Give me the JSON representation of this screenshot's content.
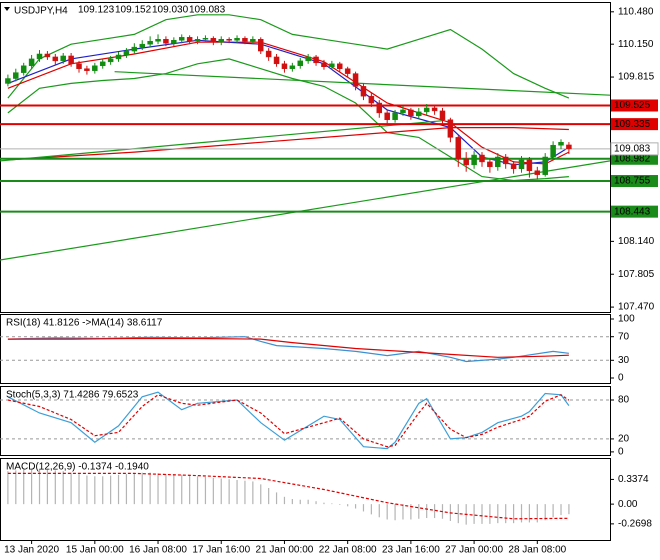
{
  "chart_data": [
    {
      "type": "candlestick",
      "title": "USDJPY,H4",
      "header_values": [
        "109.123",
        "109.152",
        "109.030",
        "109.083"
      ],
      "categories": [
        null,
        null,
        null,
        "13 Jan 2020",
        null,
        null,
        null,
        null,
        null,
        null,
        null,
        "15 Jan 00:00",
        null,
        null,
        null,
        null,
        null,
        null,
        null,
        "16 Jan 08:00",
        null,
        null,
        null,
        null,
        null,
        null,
        null,
        "17 Jan 16:00",
        null,
        null,
        null,
        null,
        null,
        null,
        null,
        "21 Jan 00:00",
        null,
        null,
        null,
        null,
        null,
        null,
        null,
        "22 Jan 08:00",
        null,
        null,
        null,
        null,
        null,
        null,
        null,
        "23 Jan 16:00",
        null,
        null,
        null,
        null,
        null,
        null,
        null,
        "27 Jan 00:00",
        null,
        null,
        null,
        null,
        null,
        null,
        null,
        "28 Jan 08:00",
        null,
        null,
        null,
        null
      ],
      "open": [
        109.75,
        109.8,
        109.86,
        109.93,
        110.0,
        110.05,
        110.02,
        109.98,
        110.03,
        109.95,
        109.9,
        109.88,
        109.93,
        109.97,
        110.0,
        110.04,
        110.08,
        110.12,
        110.15,
        110.18,
        110.2,
        110.16,
        110.19,
        110.22,
        110.18,
        110.2,
        110.21,
        110.17,
        110.2,
        110.19,
        110.21,
        110.18,
        110.2,
        110.08,
        110.02,
        109.95,
        109.9,
        109.93,
        109.98,
        110.02,
        109.96,
        109.92,
        109.95,
        109.9,
        109.85,
        109.72,
        109.62,
        109.55,
        109.45,
        109.38,
        109.45,
        109.48,
        109.42,
        109.46,
        109.5,
        109.47,
        109.38,
        109.2,
        108.98,
        108.92,
        109.02,
        108.95,
        108.9,
        109.0,
        108.93,
        108.88,
        108.97,
        108.86,
        108.82,
        109.0,
        109.12,
        109.123
      ],
      "high": [
        109.84,
        109.9,
        109.96,
        110.04,
        110.09,
        110.08,
        110.05,
        110.06,
        110.06,
        109.98,
        109.93,
        109.96,
        110.0,
        110.03,
        110.07,
        110.11,
        110.16,
        110.19,
        110.23,
        110.25,
        110.23,
        110.22,
        110.25,
        110.24,
        110.23,
        110.24,
        110.23,
        110.23,
        110.22,
        110.24,
        110.23,
        110.23,
        110.22,
        110.11,
        110.05,
        109.98,
        109.96,
        110.01,
        110.05,
        110.04,
        109.99,
        109.98,
        109.97,
        109.92,
        109.87,
        109.75,
        109.66,
        109.58,
        109.48,
        109.48,
        109.52,
        109.5,
        109.5,
        109.54,
        109.53,
        109.5,
        109.4,
        109.22,
        109.05,
        109.06,
        109.05,
        108.98,
        109.04,
        109.03,
        108.96,
        109.01,
        109.0,
        108.9,
        109.04,
        109.16,
        109.18,
        109.152
      ],
      "low": [
        109.72,
        109.77,
        109.83,
        109.9,
        109.97,
        109.99,
        109.94,
        109.95,
        109.92,
        109.86,
        109.84,
        109.85,
        109.9,
        109.94,
        109.97,
        110.01,
        110.05,
        110.09,
        110.12,
        110.15,
        110.13,
        110.13,
        110.16,
        110.15,
        110.15,
        110.17,
        110.14,
        110.14,
        110.16,
        110.16,
        110.15,
        110.15,
        110.05,
        109.98,
        109.92,
        109.86,
        109.87,
        109.9,
        109.95,
        109.93,
        109.89,
        109.89,
        109.87,
        109.81,
        109.68,
        109.58,
        109.51,
        109.4,
        109.34,
        109.35,
        109.42,
        109.38,
        109.39,
        109.43,
        109.43,
        109.33,
        109.15,
        108.9,
        108.85,
        108.88,
        108.9,
        108.84,
        108.86,
        108.88,
        108.83,
        108.84,
        108.79,
        108.77,
        108.8,
        108.97,
        109.08,
        109.03
      ],
      "close": [
        109.8,
        109.86,
        109.93,
        110.0,
        110.05,
        110.02,
        109.98,
        110.03,
        109.95,
        109.9,
        109.88,
        109.93,
        109.97,
        110.0,
        110.04,
        110.08,
        110.12,
        110.15,
        110.18,
        110.2,
        110.16,
        110.19,
        110.22,
        110.18,
        110.2,
        110.21,
        110.17,
        110.2,
        110.19,
        110.21,
        110.18,
        110.2,
        110.08,
        110.02,
        109.95,
        109.9,
        109.93,
        109.98,
        110.02,
        109.96,
        109.92,
        109.95,
        109.9,
        109.85,
        109.72,
        109.62,
        109.55,
        109.45,
        109.38,
        109.45,
        109.48,
        109.42,
        109.46,
        109.5,
        109.47,
        109.38,
        109.2,
        108.98,
        108.92,
        109.02,
        108.95,
        108.9,
        109.0,
        108.93,
        108.88,
        108.97,
        108.86,
        108.82,
        109.0,
        109.12,
        109.15,
        109.083
      ],
      "up_color": "#118c11",
      "down_color": "#d01010",
      "xlim": [
        -1,
        76.2
      ],
      "ylim": [
        107.42,
        110.58
      ],
      "yticks": [
        {
          "value": 110.48,
          "label": "110.480"
        },
        {
          "value": 110.15,
          "label": "110.150"
        },
        {
          "value": 109.815,
          "label": "109.815"
        },
        {
          "value": 108.14,
          "label": "108.140"
        },
        {
          "value": 107.805,
          "label": "107.805"
        },
        {
          "value": 107.47,
          "label": "107.470"
        }
      ],
      "overlays": [
        {
          "color": "#1a9a1a",
          "x": [
            0,
            4,
            8,
            12,
            16,
            20,
            24,
            28,
            32,
            36,
            40,
            44,
            48,
            52,
            56,
            60,
            64,
            68,
            71
          ],
          "values": [
            109.6,
            110.0,
            110.15,
            110.2,
            110.25,
            110.4,
            110.45,
            110.45,
            110.4,
            110.25,
            110.2,
            110.15,
            110.1,
            110.2,
            110.3,
            110.1,
            109.85,
            109.7,
            109.6
          ]
        },
        {
          "color": "#1a9a1a",
          "x": [
            0,
            4,
            8,
            12,
            16,
            20,
            24,
            28,
            32,
            36,
            40,
            44,
            48,
            52,
            56,
            60,
            64,
            68,
            71
          ],
          "values": [
            109.45,
            109.7,
            109.75,
            109.78,
            109.8,
            109.85,
            109.95,
            110.0,
            109.9,
            109.8,
            109.72,
            109.55,
            109.25,
            109.2,
            109.0,
            108.8,
            108.76,
            108.78,
            108.8
          ]
        },
        {
          "color": "#e00000",
          "x": [
            0,
            8,
            16,
            24,
            32,
            40,
            48,
            56,
            60,
            64,
            68,
            71
          ],
          "values": [
            109.7,
            109.95,
            110.05,
            110.17,
            110.17,
            109.97,
            109.55,
            109.35,
            109.1,
            108.95,
            108.93,
            109.05
          ]
        },
        {
          "color": "#2020c8",
          "x": [
            0,
            8,
            16,
            24,
            32,
            40,
            48,
            56,
            60,
            64,
            68,
            71
          ],
          "values": [
            109.75,
            110.0,
            110.1,
            110.19,
            110.15,
            109.95,
            109.48,
            109.3,
            109.0,
            108.92,
            108.95,
            109.1
          ]
        },
        {
          "color": "#e00000",
          "x": [
            0,
            16,
            32,
            48,
            56,
            64,
            71
          ],
          "values": [
            108.97,
            109.05,
            109.15,
            109.25,
            109.3,
            109.3,
            109.28
          ]
        },
        {
          "color": "#1a9a1a",
          "x": [
            -1,
            76.2
          ],
          "values": [
            107.95,
            108.96
          ]
        },
        {
          "color": "#1a9a1a",
          "x": [
            -1,
            55
          ],
          "values": [
            108.96,
            109.37
          ]
        },
        {
          "color": "#1a9a1a",
          "x": [
            13.5,
            76.2
          ],
          "values": [
            109.87,
            109.63
          ]
        }
      ],
      "levels": [
        {
          "value": 109.525,
          "label": "109.525",
          "color": "#e00000"
        },
        {
          "value": 109.335,
          "label": "109.335",
          "color": "#e00000"
        },
        {
          "value": 108.982,
          "label": "108.982",
          "color": "#1a8a1a"
        },
        {
          "value": 108.755,
          "label": "108.755",
          "color": "#1a8a1a"
        },
        {
          "value": 108.443,
          "label": "108.443",
          "color": "#1a8a1a"
        }
      ],
      "current": {
        "value": 109.083,
        "label": "109.083",
        "color": "#b0b0b0"
      }
    },
    {
      "type": "line",
      "title": "RSI(18) 41.8126 ->MA(14) 38.6117",
      "ylim": [
        -8.5,
        108.5
      ],
      "yticks": [
        100,
        70,
        30,
        0
      ],
      "levels": [
        70,
        30
      ],
      "series": [
        {
          "color": "#3c8fd0",
          "x": [
            0,
            6,
            12,
            18,
            24,
            30,
            32,
            34,
            40,
            44,
            48,
            52,
            56,
            58,
            62,
            64,
            69,
            71
          ],
          "values": [
            66,
            68,
            67,
            69,
            68,
            70,
            62,
            55,
            50,
            45,
            38,
            45,
            35,
            28,
            32,
            35,
            45,
            41.8126
          ]
        },
        {
          "color": "#e00000",
          "x": [
            0,
            8,
            16,
            24,
            32,
            36,
            44,
            50,
            56,
            62,
            68,
            71
          ],
          "values": [
            66,
            66,
            67,
            67,
            66,
            60,
            50,
            45,
            40,
            35,
            37,
            38.6117
          ]
        }
      ]
    },
    {
      "type": "line",
      "title": "Stoch(5,3,3) 71.4286 79.6523",
      "ylim": [
        -4.8,
        101.6
      ],
      "yticks": [
        80,
        20,
        0
      ],
      "levels": [
        80,
        20
      ],
      "series": [
        {
          "color": "#3c9fd9",
          "x": [
            0,
            4,
            8,
            11,
            14,
            17,
            19,
            22,
            24,
            29,
            32,
            35,
            40,
            42,
            45,
            48,
            49,
            52,
            53,
            56,
            58,
            60,
            62,
            65,
            66,
            68,
            70,
            71
          ],
          "values": [
            85,
            60,
            45,
            15,
            40,
            85,
            92,
            65,
            75,
            80,
            45,
            18,
            55,
            50,
            8,
            5,
            15,
            75,
            82,
            20,
            22,
            30,
            45,
            55,
            62,
            90,
            88,
            71.4286
          ]
        },
        {
          "color": "#e00000",
          "dash": true,
          "x": [
            0,
            4,
            8,
            11,
            14,
            17,
            19,
            22,
            24,
            29,
            32,
            35,
            40,
            42,
            45,
            48,
            49,
            52,
            53,
            56,
            58,
            60,
            62,
            65,
            66,
            68,
            70,
            71
          ],
          "values": [
            80,
            70,
            50,
            25,
            30,
            70,
            88,
            75,
            72,
            80,
            60,
            28,
            45,
            52,
            20,
            8,
            10,
            60,
            75,
            35,
            22,
            27,
            38,
            50,
            55,
            78,
            88,
            79.6523
          ]
        }
      ]
    },
    {
      "type": "bar",
      "title": "MACD(12,26,9) -0.1374 -0.1940",
      "ylim": [
        -0.49,
        0.63
      ],
      "yticks": [
        0.3374,
        {
          "value": 0,
          "label": "0.00"
        },
        -0.2698
      ],
      "color": "#b4b4b4",
      "values": [
        0.45,
        0.46,
        0.47,
        0.47,
        0.48,
        0.47,
        0.46,
        0.45,
        0.43,
        0.41,
        0.39,
        0.38,
        0.38,
        0.39,
        0.4,
        0.41,
        0.42,
        0.43,
        0.43,
        0.42,
        0.41,
        0.4,
        0.4,
        0.39,
        0.38,
        0.37,
        0.36,
        0.35,
        0.34,
        0.33,
        0.32,
        0.31,
        0.27,
        0.22,
        0.16,
        0.1,
        0.07,
        0.06,
        0.06,
        0.04,
        0.02,
        0.01,
        -0.01,
        -0.03,
        -0.06,
        -0.1,
        -0.14,
        -0.18,
        -0.21,
        -0.22,
        -0.21,
        -0.21,
        -0.2,
        -0.19,
        -0.19,
        -0.2,
        -0.23,
        -0.26,
        -0.28,
        -0.27,
        -0.27,
        -0.27,
        -0.26,
        -0.26,
        -0.26,
        -0.25,
        -0.25,
        -0.25,
        -0.22,
        -0.18,
        -0.15,
        -0.1374
      ],
      "series": [
        {
          "color": "#e00000",
          "dash": true,
          "x": [
            0,
            16,
            24,
            32,
            40,
            48,
            56,
            64,
            71
          ],
          "values": [
            0.42,
            0.42,
            0.39,
            0.35,
            0.2,
            0.02,
            -0.12,
            -0.2,
            -0.194
          ]
        }
      ]
    }
  ]
}
